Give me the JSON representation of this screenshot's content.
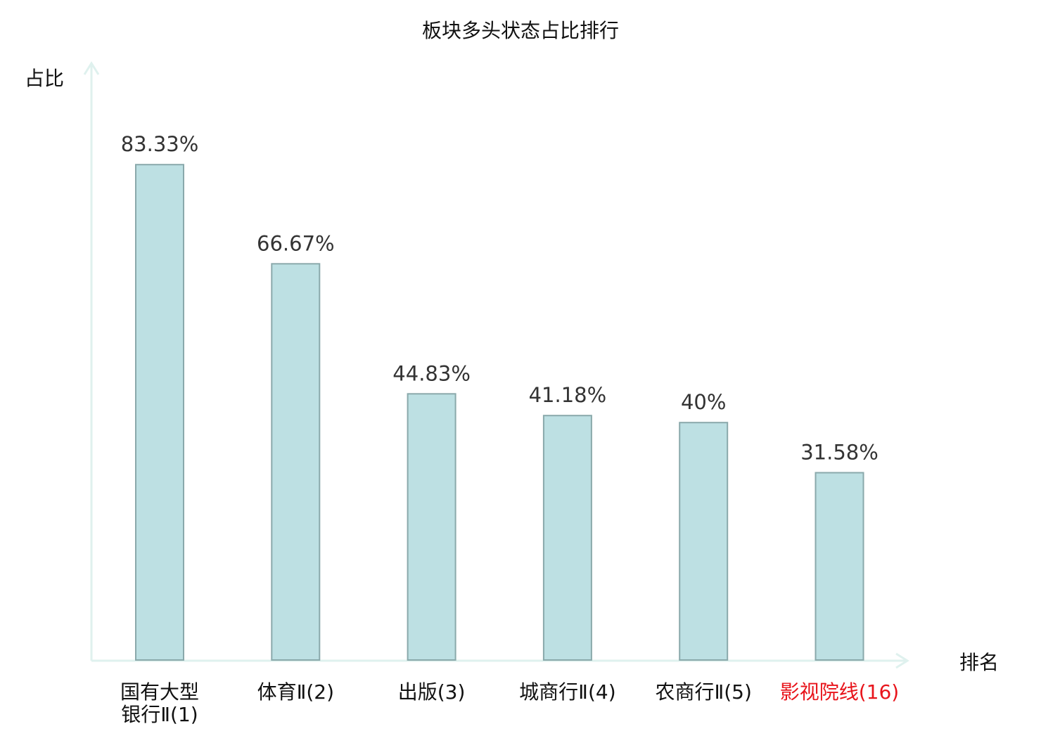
{
  "chart_data": {
    "type": "bar",
    "title": "板块多头状态占比排行",
    "ylabel": "占比",
    "xlabel": "排名",
    "categories": [
      [
        "国有大型",
        "银行Ⅱ(1)"
      ],
      [
        "体育Ⅱ(2)"
      ],
      [
        "出版(3)"
      ],
      [
        "城商行Ⅱ(4)"
      ],
      [
        "农商行Ⅱ(5)"
      ],
      [
        "影视院线(16)"
      ]
    ],
    "values": [
      83.33,
      66.67,
      44.83,
      41.18,
      40,
      31.58
    ],
    "value_labels": [
      "83.33%",
      "66.67%",
      "44.83%",
      "41.18%",
      "40%",
      "31.58%"
    ],
    "highlight_index": 5,
    "ylim": [
      0,
      100
    ],
    "grid": false,
    "colors": {
      "bar_fill": "#bde0e3",
      "bar_stroke": "#8aa9ab",
      "axis": "#dff1ee",
      "highlight_label": "#e8141b"
    }
  }
}
